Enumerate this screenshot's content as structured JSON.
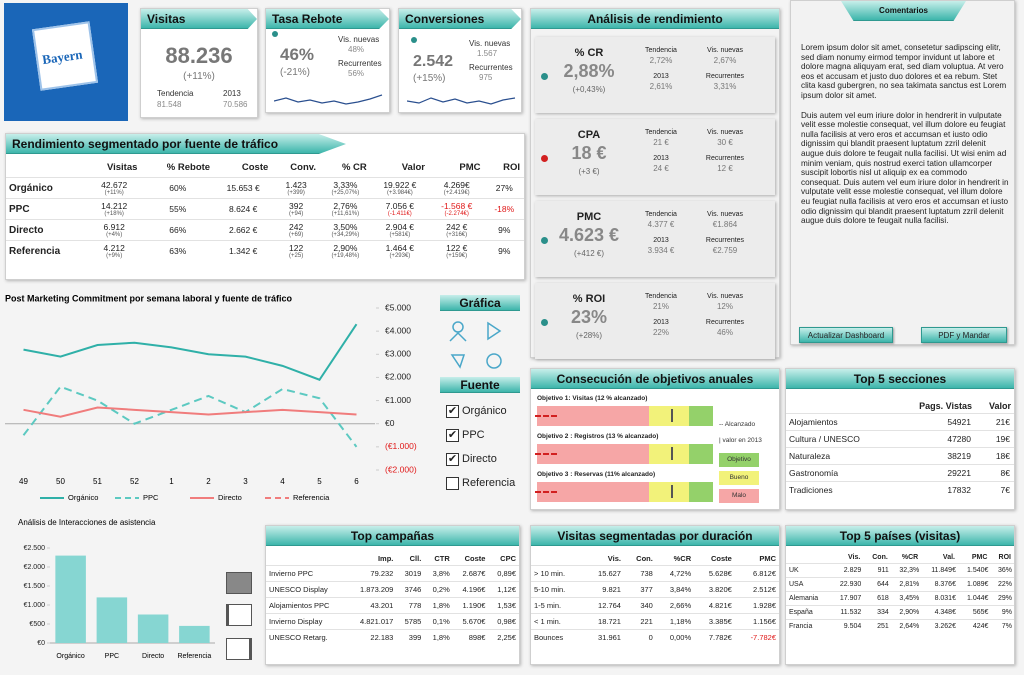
{
  "logo": "Bayern",
  "kpis": {
    "visitas": {
      "title": "Visitas",
      "value": "88.236",
      "change": "(+11%)",
      "sub": [
        {
          "label": "Tendencia",
          "value": "81.548"
        },
        {
          "label": "2013",
          "value": "70.586"
        }
      ]
    },
    "tasa_rebote": {
      "title": "Tasa Rebote",
      "value": "46%",
      "change": "(-21%)",
      "sub": [
        {
          "label": "Vis. nuevas",
          "value": "48%"
        },
        {
          "label": "Recurrentes",
          "value": "56%"
        }
      ]
    },
    "conversiones": {
      "title": "Conversiones",
      "value": "2.542",
      "change": "(+15%)",
      "sub": [
        {
          "label": "Vis. nuevas",
          "value": "1.567"
        },
        {
          "label": "Recurrentes",
          "value": "975"
        }
      ]
    }
  },
  "analisis": {
    "title": "Análisis de rendimiento",
    "items": [
      {
        "name": "% CR",
        "value": "2,88%",
        "change": "(+0,43%)",
        "status": "#2a8f8a",
        "cells": [
          [
            "Tendencia",
            "2,72%"
          ],
          [
            "Vis. nuevas",
            "2,67%"
          ],
          [
            "2013",
            "2,61%"
          ],
          [
            "Recurrentes",
            "3,31%"
          ]
        ]
      },
      {
        "name": "CPA",
        "value": "18 €",
        "change": "(+3 €)",
        "status": "#d22020",
        "cells": [
          [
            "Tendencia",
            "21 €"
          ],
          [
            "Vis. nuevas",
            "30 €"
          ],
          [
            "2013",
            "24 €"
          ],
          [
            "Recurrentes",
            "12 €"
          ]
        ]
      },
      {
        "name": "PMC",
        "value": "4.623 €",
        "change": "(+412 €)",
        "status": "#2a8f8a",
        "cells": [
          [
            "Tendencia",
            "4.377 €"
          ],
          [
            "Vis. nuevas",
            "€1.864"
          ],
          [
            "2013",
            "3.934 €"
          ],
          [
            "Recurrentes",
            "€2.759"
          ]
        ]
      },
      {
        "name": "% ROI",
        "value": "23%",
        "change": "(+28%)",
        "status": "#2a8f8a",
        "cells": [
          [
            "Tendencia",
            "21%"
          ],
          [
            "Vis. nuevas",
            "12%"
          ],
          [
            "2013",
            "22%"
          ],
          [
            "Recurrentes",
            "46%"
          ]
        ]
      }
    ]
  },
  "comentarios": {
    "title": "Comentarios",
    "paragraphs": [
      "Lorem ipsum dolor sit amet, consetetur sadipscing elitr, sed diam nonumy eirmod tempor invidunt ut labore et dolore magna aliquyam erat, sed diam voluptua. At vero eos et accusam et justo duo dolores et ea rebum. Stet clita kasd gubergren, no sea takimata sanctus est Lorem ipsum dolor sit amet.",
      "Duis autem vel eum iriure dolor in hendrerit in vulputate velit esse molestie consequat, vel illum dolore eu feugiat nulla facilisis at vero eros et accumsan et iusto odio dignissim qui blandit praesent luptatum zzril delenit augue duis dolore te feugait nulla facilisi. Ut wisi enim ad minim veniam, quis nostrud exerci tation ullamcorper suscipit lobortis nisl ut aliquip ex ea commodo consequat. Duis autem vel eum iriure dolor in hendrerit in vulputate velit esse molestie consequat, vel illum dolore eu feugiat nulla facilisis at vero eros et accumsan et iusto odio dignissim qui blandit praesent luptatum zzril delenit augue duis dolore te feugait nulla facilisi."
    ],
    "buttons": [
      "Actualizar Dashboard",
      "PDF y Mandar"
    ]
  },
  "rendimiento": {
    "title": "Rendimiento  segmentado por fuente de tráfico",
    "headers": [
      "Visitas",
      "% Rebote",
      "Coste",
      "Conv.",
      "% CR",
      "Valor",
      "PMC",
      "ROI"
    ],
    "rows": [
      {
        "label": "Orgánico",
        "cells": [
          [
            "42.672",
            "(+11%)"
          ],
          [
            "60%"
          ],
          [
            "15.653 €"
          ],
          [
            "1.423",
            "(+399)"
          ],
          [
            "3,33%",
            "(+25,07%)"
          ],
          [
            "19.922 €",
            "(+3.984€)"
          ],
          [
            "4.269€",
            "(+2.419€)"
          ],
          [
            "27%"
          ]
        ]
      },
      {
        "label": "PPC",
        "cells": [
          [
            "14.212",
            "(+18%)"
          ],
          [
            "55%"
          ],
          [
            "8.624 €"
          ],
          [
            "392",
            "(+94)"
          ],
          [
            "2,76%",
            "(+11,61%)"
          ],
          [
            "7.056 €",
            "(-1.411€)"
          ],
          [
            "-1.568 €",
            "(-2.274€)"
          ],
          [
            "-18%"
          ]
        ]
      },
      {
        "label": "Directo",
        "cells": [
          [
            "6.912",
            "(+4%)"
          ],
          [
            "66%"
          ],
          [
            "2.662 €"
          ],
          [
            "242",
            "(+69)"
          ],
          [
            "3,50%",
            "(+34,29%)"
          ],
          [
            "2.904 €",
            "(+581€)"
          ],
          [
            "242 €",
            "(+316€)"
          ],
          [
            "9%"
          ]
        ]
      },
      {
        "label": "Referencia",
        "cells": [
          [
            "4.212",
            "(+9%)"
          ],
          [
            "63%"
          ],
          [
            "1.342 €"
          ],
          [
            "122",
            "(+25)"
          ],
          [
            "2,90%",
            "(+19,48%)"
          ],
          [
            "1.464 €",
            "(+293€)"
          ],
          [
            "122 €",
            "(+159€)"
          ],
          [
            "9%"
          ]
        ]
      }
    ]
  },
  "panel": {
    "grafica": "Gráfica",
    "fuente": "Fuente",
    "checkboxes": [
      {
        "label": "Orgánico",
        "checked": true
      },
      {
        "label": "PPC",
        "checked": true
      },
      {
        "label": "Directo",
        "checked": true
      },
      {
        "label": "Referencia",
        "checked": false
      }
    ]
  },
  "chart_data": [
    {
      "type": "line",
      "title": "Post Marketing Commitment por semana laboral y fuente de tráfico",
      "categories": [
        "49",
        "50",
        "51",
        "52",
        "1",
        "2",
        "3",
        "4",
        "5",
        "6"
      ],
      "series": [
        {
          "name": "Orgánico",
          "color": "#2fb0a8",
          "style": "solid",
          "values": [
            3200,
            2900,
            3400,
            3500,
            3300,
            3000,
            2900,
            2500,
            1900,
            4300
          ]
        },
        {
          "name": "PPC",
          "color": "#5cc9c1",
          "style": "dashed",
          "values": [
            -500,
            1600,
            1000,
            0,
            600,
            1200,
            500,
            1500,
            1100,
            -1000
          ]
        },
        {
          "name": "Directo",
          "color": "#f07c7c",
          "style": "solid",
          "values": [
            600,
            300,
            700,
            600,
            500,
            400,
            500,
            600,
            500,
            400
          ]
        },
        {
          "name": "Referencia",
          "color": "#f07c7c",
          "style": "dashed",
          "values": [
            null,
            null,
            null,
            null,
            null,
            null,
            null,
            null,
            null,
            null
          ]
        }
      ],
      "ylim": [
        -2000,
        5000
      ],
      "yticks": [
        {
          "value": 5000,
          "label": "€5.000"
        },
        {
          "value": 4000,
          "label": "€4.000"
        },
        {
          "value": 3000,
          "label": "€3.000"
        },
        {
          "value": 2000,
          "label": "€2.000"
        },
        {
          "value": 1000,
          "label": "€1.000"
        },
        {
          "value": 0,
          "label": "€0"
        },
        {
          "value": -1000,
          "label": "(€1.000)"
        },
        {
          "value": -2000,
          "label": "(€2.000)"
        }
      ],
      "grid": false,
      "legend": "bottom"
    },
    {
      "type": "bar",
      "title": "Análisis de Interacciones de asistencia",
      "categories": [
        "Orgánico",
        "PPC",
        "Directo",
        "Referencia"
      ],
      "values": [
        2300,
        1200,
        750,
        450
      ],
      "color": "#86d6d2",
      "ylim": [
        0,
        2500
      ],
      "yticks": [
        {
          "value": 2500,
          "label": "€2.500"
        },
        {
          "value": 2000,
          "label": "€2.000"
        },
        {
          "value": 1500,
          "label": "€1.500"
        },
        {
          "value": 1000,
          "label": "€1.000"
        },
        {
          "value": 500,
          "label": "€500"
        },
        {
          "value": 0,
          "label": "€0"
        }
      ],
      "grid": false
    }
  ],
  "consecucion": {
    "title": "Consecución de objetivos anuales",
    "objectives": [
      "Objetivo 1: Visitas (12 % alcanzado)",
      "Objetivo 2 : Registros (13 % alcanzado)",
      "Objetivo 3 : Reservas (11% alcanzado)"
    ],
    "legend": [
      "Alcanzado",
      "valor en 2013",
      "Objetivo",
      "Bueno",
      "Malo"
    ]
  },
  "secciones": {
    "title": "Top 5 secciones",
    "headers": [
      "Pags. Vistas",
      "Valor"
    ],
    "rows": [
      {
        "label": "Alojamientos",
        "cells": [
          "54921",
          "21€"
        ]
      },
      {
        "label": "Cultura / UNESCO",
        "cells": [
          "47280",
          "19€"
        ]
      },
      {
        "label": "Naturaleza",
        "cells": [
          "38219",
          "18€"
        ]
      },
      {
        "label": "Gastronomía",
        "cells": [
          "29221",
          "8€"
        ]
      },
      {
        "label": "Tradiciones",
        "cells": [
          "17832",
          "7€"
        ]
      }
    ]
  },
  "campanas": {
    "title": "Top campañas",
    "headers": [
      "Imp.",
      "Cll.",
      "CTR",
      "Coste",
      "CPC"
    ],
    "rows": [
      {
        "label": "Invierno PPC",
        "cells": [
          "79.232",
          "3019",
          "3,8%",
          "2.687€",
          "0,89€"
        ]
      },
      {
        "label": "UNESCO Display",
        "cells": [
          "1.873.209",
          "3746",
          "0,2%",
          "4.196€",
          "1,12€"
        ]
      },
      {
        "label": "Alojamientos PPC",
        "cells": [
          "43.201",
          "778",
          "1,8%",
          "1.190€",
          "1,53€"
        ]
      },
      {
        "label": "Invierno Display",
        "cells": [
          "4.821.017",
          "5785",
          "0,1%",
          "5.670€",
          "0,98€"
        ]
      },
      {
        "label": "UNESCO Retarg.",
        "cells": [
          "22.183",
          "399",
          "1,8%",
          "898€",
          "2,25€"
        ]
      }
    ]
  },
  "duracion": {
    "title": "Visitas segmentadas por duración",
    "headers": [
      "Vis.",
      "Con.",
      "%CR",
      "Coste",
      "PMC"
    ],
    "rows": [
      {
        "label": "> 10 min.",
        "cells": [
          "15.627",
          "738",
          "4,72%",
          "5.628€",
          "6.812€"
        ]
      },
      {
        "label": "5-10 min.",
        "cells": [
          "9.821",
          "377",
          "3,84%",
          "3.820€",
          "2.512€"
        ]
      },
      {
        "label": "1-5 min.",
        "cells": [
          "12.764",
          "340",
          "2,66%",
          "4.821€",
          "1.928€"
        ]
      },
      {
        "label": "< 1 min.",
        "cells": [
          "18.721",
          "221",
          "1,18%",
          "3.385€",
          "1.156€"
        ]
      },
      {
        "label": "Bounces",
        "cells": [
          "31.961",
          "0",
          "0,00%",
          "7.782€",
          "-7.782€"
        ]
      }
    ]
  },
  "paises": {
    "title": "Top 5 países (visitas)",
    "headers": [
      "Vis.",
      "Con.",
      "%CR",
      "Val.",
      "PMC",
      "ROI"
    ],
    "rows": [
      {
        "label": "UK",
        "cells": [
          "2.829",
          "911",
          "32,3%",
          "11.849€",
          "1.540€",
          "36%"
        ]
      },
      {
        "label": "USA",
        "cells": [
          "22.930",
          "644",
          "2,81%",
          "8.376€",
          "1.089€",
          "22%"
        ]
      },
      {
        "label": "Alemania",
        "cells": [
          "17.907",
          "618",
          "3,45%",
          "8.031€",
          "1.044€",
          "29%"
        ]
      },
      {
        "label": "España",
        "cells": [
          "11.532",
          "334",
          "2,90%",
          "4.348€",
          "565€",
          "9%"
        ]
      },
      {
        "label": "Francia",
        "cells": [
          "9.504",
          "251",
          "2,64%",
          "3.262€",
          "424€",
          "7%"
        ]
      }
    ]
  }
}
